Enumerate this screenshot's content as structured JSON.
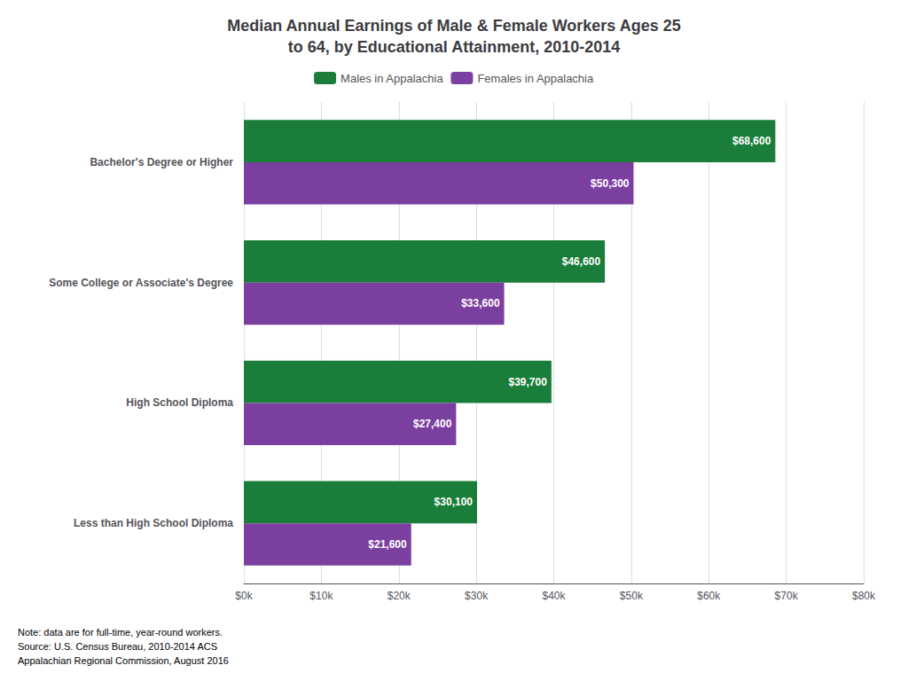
{
  "chart_data": {
    "type": "bar",
    "orientation": "horizontal",
    "title": "Median Annual Earnings of Male & Female Workers Ages 25\nto 64, by Educational Attainment, 2010-2014",
    "categories": [
      "Bachelor's Degree or Higher",
      "Some College or Associate's Degree",
      "High School Diploma",
      "Less than High School Diploma"
    ],
    "series": [
      {
        "name": "Males in Appalachia",
        "color": "#1a7d3a",
        "values": [
          68600,
          46600,
          39700,
          30100
        ],
        "value_labels": [
          "$68,600",
          "$46,600",
          "$39,700",
          "$30,100"
        ]
      },
      {
        "name": "Females in Appalachia",
        "color": "#7b3fa0",
        "values": [
          50300,
          33600,
          27400,
          21600
        ],
        "value_labels": [
          "$50,300",
          "$33,600",
          "$27,400",
          "$21,600"
        ]
      }
    ],
    "xlim": [
      0,
      80000
    ],
    "xticks": [
      {
        "value": 0,
        "label": "$0k"
      },
      {
        "value": 10000,
        "label": "$10k"
      },
      {
        "value": 20000,
        "label": "$20k"
      },
      {
        "value": 30000,
        "label": "$30k"
      },
      {
        "value": 40000,
        "label": "$40k"
      },
      {
        "value": 50000,
        "label": "$50k"
      },
      {
        "value": 60000,
        "label": "$60k"
      },
      {
        "value": 70000,
        "label": "$70k"
      },
      {
        "value": 80000,
        "label": "$80k"
      }
    ],
    "grid": true,
    "data_labels": true,
    "legend": "top",
    "annotations": [
      "Note: data are for full-time, year-round workers.\nSource: U.S. Census Bureau, 2010-2014 ACS\nAppalachian Regional Commission, August 2016"
    ]
  }
}
